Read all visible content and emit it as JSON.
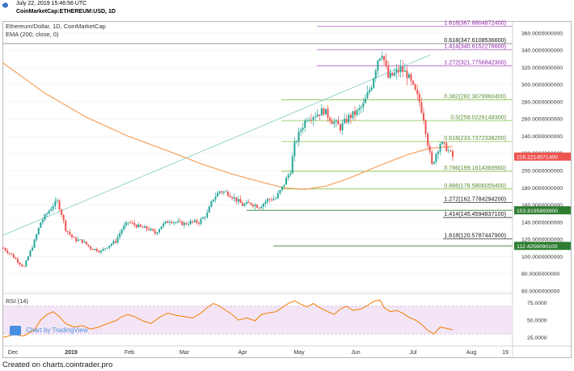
{
  "header": {
    "timestamp": "July 22, 2019 15:46:56 UTC",
    "symbol": "CoinMarketCap:ETHEREUM:USD, 1D"
  },
  "legend": {
    "title": "Ethereum/Dollar, 1D, CoinMarketCap",
    "ema": "EMA (200, close, 0)"
  },
  "rsi_label": "RSI (14)",
  "watermark": "Chart by TradingView",
  "footer": "Created on charts.cointrader.pro",
  "colors": {
    "up": "#26a69a",
    "down": "#ef5350",
    "ema": "#f6a05a",
    "rsi_line": "#f57c00",
    "rsi_band": "#f3e5f5",
    "fib_ext": "#ba68c8",
    "fib_ret": "#8bc34a",
    "price_tag": "#ef5350",
    "level_tag": "#2e7d32"
  },
  "chart_data": [
    {
      "type": "candlestick",
      "title": "Ethereum/Dollar, 1D, CoinMarketCap",
      "x_ticks": [
        "Dec",
        "2019",
        "Feb",
        "Mar",
        "Apr",
        "May",
        "Jun",
        "Jul",
        "Aug",
        "19"
      ],
      "y_ticks": [
        "60.0000000000",
        "80.0000000000",
        "100.0000000000",
        "120.0000000000",
        "140.0000000000",
        "160.0000000000",
        "180.0000000000",
        "200.0000000000",
        "220.0000000000",
        "240.0000000000",
        "260.0000000000",
        "280.0000000000",
        "300.0000000000",
        "320.0000000000",
        "340.0000000000",
        "360.0000000000"
      ],
      "ylim": [
        60,
        372
      ],
      "price_points": [
        [
          0,
          110
        ],
        [
          4,
          102
        ],
        [
          8,
          92
        ],
        [
          10,
          88
        ],
        [
          12,
          100
        ],
        [
          15,
          118
        ],
        [
          18,
          140
        ],
        [
          21,
          150
        ],
        [
          24,
          160
        ],
        [
          26,
          164
        ],
        [
          28,
          150
        ],
        [
          30,
          132
        ],
        [
          34,
          120
        ],
        [
          38,
          118
        ],
        [
          42,
          110
        ],
        [
          47,
          106
        ],
        [
          50,
          112
        ],
        [
          54,
          118
        ],
        [
          57,
          132
        ],
        [
          60,
          140
        ],
        [
          62,
          138
        ],
        [
          66,
          134
        ],
        [
          70,
          132
        ],
        [
          73,
          127
        ],
        [
          76,
          136
        ],
        [
          80,
          142
        ],
        [
          83,
          140
        ],
        [
          87,
          138
        ],
        [
          90,
          140
        ],
        [
          94,
          140
        ],
        [
          98,
          150
        ],
        [
          101,
          168
        ],
        [
          104,
          176
        ],
        [
          108,
          174
        ],
        [
          112,
          166
        ],
        [
          115,
          160
        ],
        [
          119,
          162
        ],
        [
          123,
          158
        ],
        [
          127,
          166
        ],
        [
          131,
          168
        ],
        [
          134,
          180
        ],
        [
          138,
          200
        ],
        [
          140,
          230
        ],
        [
          143,
          248
        ],
        [
          146,
          262
        ],
        [
          150,
          265
        ],
        [
          154,
          270
        ],
        [
          158,
          258
        ],
        [
          162,
          250
        ],
        [
          166,
          262
        ],
        [
          170,
          268
        ],
        [
          173,
          276
        ],
        [
          177,
          300
        ],
        [
          180,
          330
        ],
        [
          182,
          338
        ],
        [
          185,
          308
        ],
        [
          188,
          312
        ],
        [
          191,
          318
        ],
        [
          194,
          312
        ],
        [
          197,
          296
        ],
        [
          200,
          280
        ],
        [
          202,
          262
        ],
        [
          204,
          232
        ],
        [
          206,
          206
        ],
        [
          208,
          220
        ],
        [
          210,
          232
        ],
        [
          213,
          226
        ],
        [
          216,
          216
        ]
      ],
      "series": [
        {
          "name": "EMA (200, close, 0)",
          "points": [
            [
              0,
              325
            ],
            [
              20,
              290
            ],
            [
              40,
              262
            ],
            [
              60,
              240
            ],
            [
              80,
              222
            ],
            [
              95,
              208
            ],
            [
              110,
              196
            ],
            [
              125,
              186
            ],
            [
              135,
              180
            ],
            [
              145,
              178
            ],
            [
              155,
              182
            ],
            [
              165,
              190
            ],
            [
              175,
              200
            ],
            [
              185,
              210
            ],
            [
              195,
              219
            ],
            [
              205,
              226
            ],
            [
              216,
              228
            ]
          ]
        }
      ],
      "fib_extensions": [
        {
          "label": "1.618(367.6804872400)",
          "value": 367.68
        },
        {
          "label": "1.414(340.6152276600)",
          "value": 340.62
        },
        {
          "label": "1.272(321.7756842300)",
          "value": 321.78
        }
      ],
      "fib_retracements": [
        {
          "label": "0.382(282.3079960400)",
          "value": 282.31
        },
        {
          "label": "0.5(258.0226149300)",
          "value": 258.02
        },
        {
          "label": "0.618(233.7372338200)",
          "value": 233.74
        },
        {
          "label": "0.786(199.1614369900)",
          "value": 199.16
        },
        {
          "label": "0.886(178.5806055400)",
          "value": 178.58
        }
      ],
      "other_levels": [
        {
          "label": "0.618(347.6108536600)",
          "value": 347.61
        },
        {
          "label": "1.272(162.7784294200)",
          "value": 162.78
        },
        {
          "label": "1.414(145.4594837100)",
          "value": 145.46
        },
        {
          "label": "1.618(120.5787447900)",
          "value": 120.58
        }
      ],
      "price_tags": [
        {
          "label": "216.2214571400",
          "value": 216.22
        },
        {
          "label": "153.8195893900",
          "value": 153.82
        },
        {
          "label": "112.4256090100",
          "value": 112.43
        }
      ]
    },
    {
      "type": "line",
      "title": "RSI (14)",
      "y_ticks": [
        "25.0000",
        "50.0000",
        "75.0000"
      ],
      "ylim": [
        15,
        85
      ],
      "band": [
        30,
        70
      ],
      "points": [
        [
          0,
          25
        ],
        [
          5,
          29
        ],
        [
          10,
          27
        ],
        [
          15,
          36
        ],
        [
          18,
          50
        ],
        [
          21,
          58
        ],
        [
          24,
          62
        ],
        [
          27,
          55
        ],
        [
          30,
          45
        ],
        [
          34,
          40
        ],
        [
          38,
          42
        ],
        [
          42,
          37
        ],
        [
          46,
          40
        ],
        [
          50,
          45
        ],
        [
          54,
          49
        ],
        [
          57,
          55
        ],
        [
          60,
          58
        ],
        [
          63,
          55
        ],
        [
          67,
          49
        ],
        [
          71,
          45
        ],
        [
          75,
          54
        ],
        [
          79,
          60
        ],
        [
          83,
          57
        ],
        [
          87,
          55
        ],
        [
          91,
          53
        ],
        [
          95,
          60
        ],
        [
          98,
          68
        ],
        [
          101,
          74
        ],
        [
          104,
          70
        ],
        [
          107,
          64
        ],
        [
          110,
          58
        ],
        [
          113,
          50
        ],
        [
          117,
          53
        ],
        [
          121,
          49
        ],
        [
          124,
          58
        ],
        [
          127,
          60
        ],
        [
          131,
          62
        ],
        [
          134,
          68
        ],
        [
          137,
          74
        ],
        [
          140,
          78
        ],
        [
          143,
          73
        ],
        [
          146,
          69
        ],
        [
          149,
          74
        ],
        [
          152,
          68
        ],
        [
          156,
          62
        ],
        [
          159,
          58
        ],
        [
          162,
          66
        ],
        [
          165,
          70
        ],
        [
          168,
          64
        ],
        [
          172,
          66
        ],
        [
          175,
          71
        ],
        [
          178,
          77
        ],
        [
          181,
          79
        ],
        [
          183,
          68
        ],
        [
          186,
          62
        ],
        [
          189,
          64
        ],
        [
          192,
          60
        ],
        [
          195,
          54
        ],
        [
          198,
          50
        ],
        [
          201,
          44
        ],
        [
          204,
          35
        ],
        [
          207,
          30
        ],
        [
          210,
          40
        ],
        [
          213,
          38
        ],
        [
          216,
          36
        ]
      ]
    }
  ]
}
